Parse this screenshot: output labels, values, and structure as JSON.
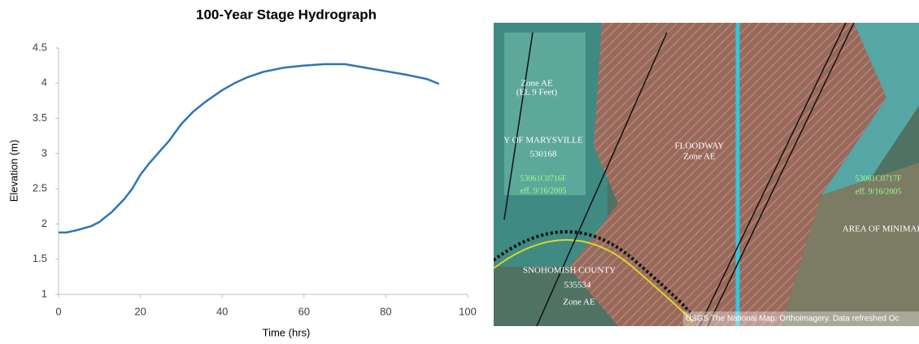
{
  "chart_data": {
    "type": "line",
    "title": "100-Year Stage Hydrograph",
    "x_label": "Time (hrs)",
    "y_label": "Elevation (m)",
    "x": [
      0,
      2,
      5,
      8,
      10,
      13,
      16,
      18,
      20,
      22,
      25,
      27,
      30,
      33,
      36,
      40,
      43,
      46,
      50,
      55,
      60,
      65,
      70,
      75,
      80,
      85,
      90,
      93
    ],
    "values": [
      1.88,
      1.88,
      1.92,
      1.97,
      2.03,
      2.17,
      2.35,
      2.5,
      2.7,
      2.85,
      3.05,
      3.18,
      3.42,
      3.6,
      3.74,
      3.9,
      4.0,
      4.08,
      4.16,
      4.22,
      4.25,
      4.27,
      4.27,
      4.22,
      4.17,
      4.12,
      4.06,
      3.99
    ],
    "color": "#2e75b6",
    "xlim": [
      0,
      100
    ],
    "xticks": [
      0,
      20,
      40,
      60,
      80,
      100
    ],
    "ylim": [
      1,
      4.5
    ],
    "yticks": [
      1,
      1.5,
      2,
      2.5,
      3,
      3.5,
      4,
      4.5
    ]
  },
  "map": {
    "labels": [
      "Zone AE",
      "(EL 9 Feet)",
      "Y OF MARYSVILLE",
      "530168",
      "53061C0716F",
      "eff. 9/16/2005",
      "FLOODWAY",
      "Zone AE",
      "53061C0717F",
      "eff. 9/16/2005",
      "AREA OF MINIMAL",
      "SNOHOMISH COUNTY",
      "535534",
      "Zone AE"
    ],
    "attribution": "USGS The National Map: Orthoimagery. Data refreshed Oc"
  }
}
